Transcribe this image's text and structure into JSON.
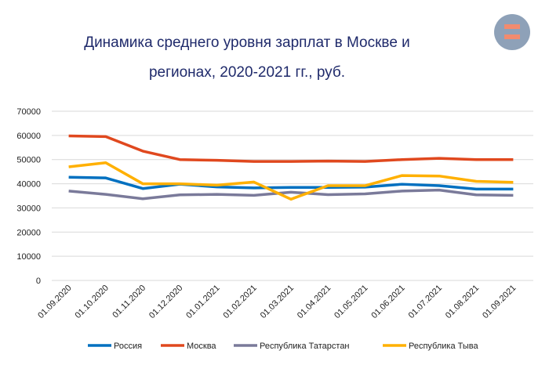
{
  "chart_data": {
    "type": "line",
    "title_line1": "Динамика среднего уровня зарплат в Москве и",
    "title_line2": "регионах, 2020-2021 гг., руб.",
    "categories": [
      "01.09.2020",
      "01.10.2020",
      "01.11.2020",
      "01.12.2020",
      "01.01.2021",
      "01.02.2021",
      "01.03.2021",
      "01.04.2021",
      "01.05.2021",
      "01.06.2021",
      "01.07.2021",
      "01.08.2021",
      "01.09.2021"
    ],
    "ylim": [
      0,
      70000
    ],
    "yticks": [
      0,
      10000,
      20000,
      30000,
      40000,
      50000,
      60000,
      70000
    ],
    "grid": true,
    "legend": "bottom",
    "series": [
      {
        "name": "Россия",
        "color": "#0070c0",
        "values": [
          42700,
          42400,
          38000,
          39800,
          38700,
          38300,
          38500,
          38500,
          38600,
          39800,
          39200,
          37800,
          37800
        ]
      },
      {
        "name": "Москва",
        "color": "#e0481e",
        "values": [
          59800,
          59500,
          53500,
          50000,
          49700,
          49200,
          49200,
          49400,
          49200,
          50000,
          50500,
          50000,
          50000
        ]
      },
      {
        "name": "Республика Татарстан",
        "color": "#7a7a9a",
        "values": [
          37000,
          35600,
          33800,
          35400,
          35600,
          35200,
          36500,
          35500,
          35800,
          37000,
          37400,
          35400,
          35200
        ]
      },
      {
        "name": "Республика Тыва",
        "color": "#ffb000",
        "values": [
          47000,
          48700,
          40000,
          40000,
          39400,
          40700,
          33600,
          39200,
          39200,
          43400,
          43200,
          41000,
          40600
        ]
      }
    ]
  },
  "logo": {
    "icon": "equals-sign-icon",
    "color": "#8ea1b8",
    "accent": "#f28b6e"
  }
}
